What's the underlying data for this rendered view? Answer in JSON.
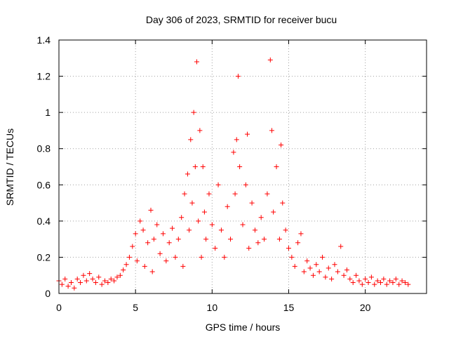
{
  "chart_data": {
    "type": "scatter",
    "title": "Day 306 of 2023, SRMTID for receiver bucu",
    "xlabel": "GPS time / hours",
    "ylabel": "SRMTID / TECUs",
    "xlim": [
      0,
      24
    ],
    "ylim": [
      0,
      1.4
    ],
    "xticks": [
      0,
      5,
      10,
      15,
      20
    ],
    "xtick_labels": [
      "0",
      "5",
      "10",
      "15",
      "20"
    ],
    "yticks": [
      0,
      0.2,
      0.4,
      0.6,
      0.8,
      1.0,
      1.2,
      1.4
    ],
    "ytick_labels": [
      "0",
      "0.2",
      "0.4",
      "0.6",
      "0.8",
      "1",
      "1.2",
      "1.4"
    ],
    "grid": true,
    "marker": "plus",
    "series": [
      {
        "name": "SRMTID",
        "color": "#ff0000",
        "points": [
          [
            0.0,
            0.07
          ],
          [
            0.2,
            0.05
          ],
          [
            0.4,
            0.08
          ],
          [
            0.6,
            0.04
          ],
          [
            0.8,
            0.06
          ],
          [
            1.0,
            0.03
          ],
          [
            1.2,
            0.08
          ],
          [
            1.4,
            0.06
          ],
          [
            1.6,
            0.1
          ],
          [
            1.8,
            0.07
          ],
          [
            2.0,
            0.11
          ],
          [
            2.2,
            0.08
          ],
          [
            2.4,
            0.06
          ],
          [
            2.6,
            0.09
          ],
          [
            2.8,
            0.05
          ],
          [
            3.0,
            0.07
          ],
          [
            3.2,
            0.06
          ],
          [
            3.4,
            0.08
          ],
          [
            3.6,
            0.07
          ],
          [
            3.8,
            0.09
          ],
          [
            4.0,
            0.1
          ],
          [
            4.2,
            0.13
          ],
          [
            4.4,
            0.16
          ],
          [
            4.6,
            0.2
          ],
          [
            4.8,
            0.26
          ],
          [
            5.0,
            0.33
          ],
          [
            5.1,
            0.18
          ],
          [
            5.3,
            0.4
          ],
          [
            5.5,
            0.35
          ],
          [
            5.6,
            0.15
          ],
          [
            5.8,
            0.28
          ],
          [
            6.0,
            0.46
          ],
          [
            6.1,
            0.12
          ],
          [
            6.2,
            0.3
          ],
          [
            6.4,
            0.38
          ],
          [
            6.6,
            0.22
          ],
          [
            6.8,
            0.33
          ],
          [
            7.0,
            0.18
          ],
          [
            7.2,
            0.28
          ],
          [
            7.4,
            0.36
          ],
          [
            7.6,
            0.2
          ],
          [
            7.8,
            0.3
          ],
          [
            8.0,
            0.42
          ],
          [
            8.1,
            0.15
          ],
          [
            8.2,
            0.55
          ],
          [
            8.4,
            0.66
          ],
          [
            8.5,
            0.35
          ],
          [
            8.6,
            0.85
          ],
          [
            8.7,
            0.5
          ],
          [
            8.8,
            1.0
          ],
          [
            8.9,
            0.7
          ],
          [
            9.0,
            1.28
          ],
          [
            9.1,
            0.4
          ],
          [
            9.2,
            0.9
          ],
          [
            9.3,
            0.2
          ],
          [
            9.4,
            0.7
          ],
          [
            9.5,
            0.45
          ],
          [
            9.6,
            0.3
          ],
          [
            9.8,
            0.55
          ],
          [
            10.0,
            0.38
          ],
          [
            10.2,
            0.25
          ],
          [
            10.4,
            0.6
          ],
          [
            10.6,
            0.35
          ],
          [
            10.8,
            0.2
          ],
          [
            11.0,
            0.48
          ],
          [
            11.2,
            0.3
          ],
          [
            11.4,
            0.78
          ],
          [
            11.5,
            0.55
          ],
          [
            11.6,
            0.85
          ],
          [
            11.7,
            1.2
          ],
          [
            11.8,
            0.7
          ],
          [
            12.0,
            0.38
          ],
          [
            12.2,
            0.6
          ],
          [
            12.3,
            0.88
          ],
          [
            12.4,
            0.25
          ],
          [
            12.6,
            0.5
          ],
          [
            12.8,
            0.35
          ],
          [
            13.0,
            0.28
          ],
          [
            13.2,
            0.42
          ],
          [
            13.4,
            0.3
          ],
          [
            13.6,
            0.55
          ],
          [
            13.8,
            1.29
          ],
          [
            13.9,
            0.9
          ],
          [
            14.0,
            0.45
          ],
          [
            14.2,
            0.7
          ],
          [
            14.4,
            0.3
          ],
          [
            14.5,
            0.82
          ],
          [
            14.6,
            0.5
          ],
          [
            14.8,
            0.35
          ],
          [
            15.0,
            0.25
          ],
          [
            15.2,
            0.2
          ],
          [
            15.4,
            0.15
          ],
          [
            15.6,
            0.28
          ],
          [
            15.8,
            0.33
          ],
          [
            16.0,
            0.12
          ],
          [
            16.2,
            0.18
          ],
          [
            16.4,
            0.14
          ],
          [
            16.6,
            0.1
          ],
          [
            16.8,
            0.16
          ],
          [
            17.0,
            0.12
          ],
          [
            17.2,
            0.2
          ],
          [
            17.4,
            0.09
          ],
          [
            17.6,
            0.14
          ],
          [
            17.8,
            0.08
          ],
          [
            18.0,
            0.16
          ],
          [
            18.2,
            0.12
          ],
          [
            18.4,
            0.26
          ],
          [
            18.6,
            0.1
          ],
          [
            18.8,
            0.13
          ],
          [
            19.0,
            0.08
          ],
          [
            19.2,
            0.06
          ],
          [
            19.4,
            0.1
          ],
          [
            19.6,
            0.07
          ],
          [
            19.8,
            0.05
          ],
          [
            20.0,
            0.08
          ],
          [
            20.2,
            0.06
          ],
          [
            20.4,
            0.09
          ],
          [
            20.6,
            0.05
          ],
          [
            20.8,
            0.07
          ],
          [
            21.0,
            0.06
          ],
          [
            21.2,
            0.08
          ],
          [
            21.4,
            0.05
          ],
          [
            21.6,
            0.07
          ],
          [
            21.8,
            0.06
          ],
          [
            22.0,
            0.08
          ],
          [
            22.2,
            0.05
          ],
          [
            22.4,
            0.07
          ],
          [
            22.6,
            0.06
          ],
          [
            22.8,
            0.05
          ]
        ]
      }
    ]
  }
}
